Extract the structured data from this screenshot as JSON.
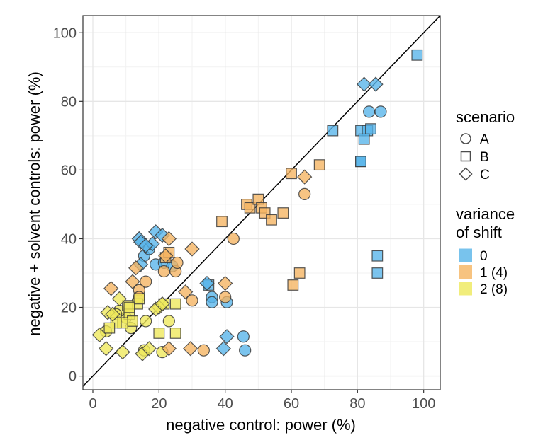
{
  "chart_data": {
    "type": "scatter",
    "xlabel": "negative control: power (%)",
    "ylabel": "negative + solvent controls: power (%)",
    "xlim": [
      -3,
      105
    ],
    "ylim": [
      -4,
      105
    ],
    "xticks": [
      0,
      20,
      40,
      60,
      80,
      100
    ],
    "yticks": [
      0,
      20,
      40,
      60,
      80,
      100
    ],
    "grid": true,
    "reference_line": "y = x",
    "legend_position": "right",
    "legend": {
      "shape": {
        "title": "scenario",
        "entries": [
          {
            "label": "A",
            "symbol": "circle"
          },
          {
            "label": "B",
            "symbol": "square"
          },
          {
            "label": "C",
            "symbol": "diamond"
          }
        ]
      },
      "fill": {
        "title_lines": [
          "variance",
          "of shift"
        ],
        "entries": [
          {
            "label": "0",
            "color": "#56B4E9"
          },
          {
            "label": "1 (4)",
            "color": "#F5B460"
          },
          {
            "label": "2 (8)",
            "color": "#EEE85A"
          }
        ]
      }
    },
    "series": [
      {
        "shape": "circle",
        "variance": "0",
        "color": "#56B4E9",
        "points": [
          [
            83.5,
            77
          ],
          [
            87,
            77
          ],
          [
            19,
            32.5
          ],
          [
            21.5,
            33
          ],
          [
            15.5,
            35
          ],
          [
            17,
            37
          ],
          [
            24,
            32
          ],
          [
            36,
            23
          ],
          [
            40.5,
            21.5
          ],
          [
            36,
            21.5
          ],
          [
            45.5,
            11.5
          ],
          [
            46,
            7.5
          ]
        ]
      },
      {
        "shape": "circle",
        "variance": "1 (4)",
        "color": "#F5B460",
        "points": [
          [
            64,
            53
          ],
          [
            42.5,
            40
          ],
          [
            40,
            23
          ],
          [
            30,
            22
          ],
          [
            25,
            30.5
          ],
          [
            25.5,
            33
          ],
          [
            21.5,
            30.5
          ],
          [
            16,
            27.5
          ],
          [
            14,
            25
          ],
          [
            14,
            23
          ],
          [
            33.5,
            7.5
          ]
        ]
      },
      {
        "shape": "circle",
        "variance": "2 (8)",
        "color": "#EEE85A",
        "points": [
          [
            11.5,
            14
          ],
          [
            10,
            17
          ],
          [
            8,
            19
          ],
          [
            7,
            18
          ],
          [
            16,
            16
          ],
          [
            23,
            16
          ],
          [
            21,
            7
          ],
          [
            15.5,
            7.5
          ],
          [
            4,
            13
          ]
        ]
      },
      {
        "shape": "square",
        "variance": "0",
        "color": "#56B4E9",
        "points": [
          [
            98,
            93.5
          ],
          [
            72.5,
            71.5
          ],
          [
            81,
            71.5
          ],
          [
            83,
            71.5
          ],
          [
            84,
            72
          ],
          [
            82,
            69
          ],
          [
            81,
            62.5
          ],
          [
            81,
            62.5
          ],
          [
            86,
            35
          ],
          [
            86,
            30
          ],
          [
            35,
            26.5
          ]
        ]
      },
      {
        "shape": "square",
        "variance": "1 (4)",
        "color": "#F5B460",
        "points": [
          [
            60,
            59
          ],
          [
            68.5,
            61.5
          ],
          [
            39,
            45
          ],
          [
            46.5,
            50
          ],
          [
            47.5,
            49
          ],
          [
            50,
            51.5
          ],
          [
            51,
            49
          ],
          [
            52,
            47.5
          ],
          [
            54,
            45.5
          ],
          [
            57.5,
            47.5
          ],
          [
            60.5,
            26.5
          ],
          [
            62.5,
            30
          ],
          [
            22,
            34.5
          ],
          [
            23,
            36
          ]
        ]
      },
      {
        "shape": "square",
        "variance": "2 (8)",
        "color": "#EEE85A",
        "points": [
          [
            13.5,
            21
          ],
          [
            14,
            22.5
          ],
          [
            10.5,
            20.5
          ],
          [
            11,
            18
          ],
          [
            12,
            16
          ],
          [
            9,
            15.5
          ],
          [
            7,
            15.5
          ],
          [
            21.5,
            21
          ],
          [
            25,
            21
          ],
          [
            20,
            12.5
          ],
          [
            25,
            12.5
          ],
          [
            11,
            20
          ],
          [
            5,
            14
          ]
        ]
      },
      {
        "shape": "diamond",
        "variance": "0",
        "color": "#56B4E9",
        "points": [
          [
            82,
            85
          ],
          [
            85.5,
            85
          ],
          [
            14,
            40
          ],
          [
            14.5,
            39
          ],
          [
            19,
            42
          ],
          [
            21,
            41
          ],
          [
            18,
            38.5
          ],
          [
            16,
            38
          ],
          [
            14.5,
            32.5
          ],
          [
            34.5,
            27
          ],
          [
            40.5,
            11.5
          ],
          [
            39.5,
            8
          ]
        ]
      },
      {
        "shape": "diamond",
        "variance": "1 (4)",
        "color": "#F5B460",
        "points": [
          [
            64,
            58
          ],
          [
            30,
            37
          ],
          [
            23,
            40
          ],
          [
            22,
            35
          ],
          [
            28,
            24.5
          ],
          [
            40,
            27
          ],
          [
            5.5,
            25.5
          ],
          [
            12,
            27.5
          ],
          [
            13,
            31.5
          ],
          [
            29.5,
            8
          ],
          [
            23,
            8
          ]
        ]
      },
      {
        "shape": "diamond",
        "variance": "2 (8)",
        "color": "#EEE85A",
        "points": [
          [
            2,
            12
          ],
          [
            4,
            8
          ],
          [
            4.5,
            18.5
          ],
          [
            6,
            18
          ],
          [
            8,
            22.5
          ],
          [
            9,
            7
          ],
          [
            15,
            6.5
          ],
          [
            17,
            8
          ],
          [
            20,
            20
          ],
          [
            19,
            19.5
          ],
          [
            21,
            21
          ]
        ]
      }
    ]
  }
}
